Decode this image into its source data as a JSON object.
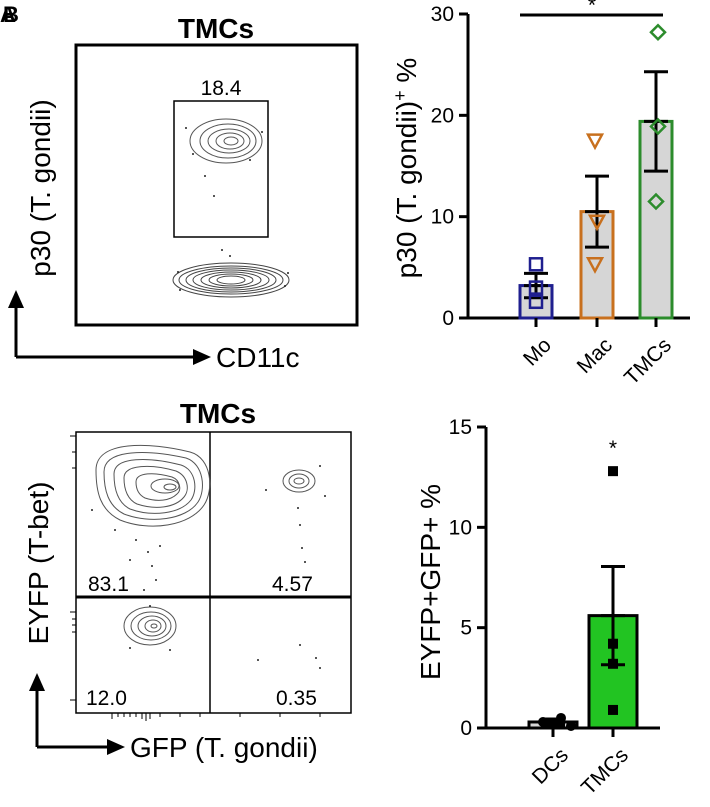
{
  "panels": {
    "letters": [
      "A",
      "B"
    ]
  },
  "flow_top": {
    "title": "TMCs",
    "y_label": "p30 (T. gondii)",
    "x_label": "CD11c",
    "gate_value": "18.4"
  },
  "flow_bottom": {
    "title": "TMCs",
    "y_label": "EYFP (T-bet)",
    "x_label": "GFP (T. gondii)",
    "quadrants": {
      "upper_left": "83.1",
      "upper_right": "4.57",
      "lower_left": "12.0",
      "lower_right": "0.35"
    }
  },
  "colors": {
    "mo": "#1f1f8f",
    "mac": "#c8701e",
    "tmc": "#2c8c2c",
    "tmc_fill": "#22c422",
    "bar_fill": "#d6d6d6"
  },
  "chart_data": [
    {
      "type": "bar",
      "title": "",
      "ylabel": "p30 (T. gondii)+ %",
      "categories": [
        "Mo",
        "Mac",
        "TMCs"
      ],
      "values": [
        3.2,
        10.5,
        19.4
      ],
      "sem": [
        1.2,
        3.5,
        4.9
      ],
      "points": [
        [
          5.3,
          3.0,
          1.6
        ],
        [
          17.5,
          9.5,
          5.3
        ],
        [
          28.2,
          18.9,
          11.5
        ]
      ],
      "ylim": [
        0,
        30
      ],
      "yticks": [
        0,
        10,
        20,
        30
      ],
      "significance": {
        "from": "Mo",
        "to": "TMCs",
        "label": "*"
      }
    },
    {
      "type": "bar",
      "title": "",
      "ylabel": "EYFP+GFP+ %",
      "categories": [
        "DCs",
        "TMCs"
      ],
      "values": [
        0.3,
        5.6
      ],
      "sem": [
        0.15,
        2.45
      ],
      "points": [
        [
          0.5,
          0.3,
          0.25,
          0.1
        ],
        [
          12.8,
          4.2,
          3.2,
          0.9
        ]
      ],
      "ylim": [
        0,
        15
      ],
      "yticks": [
        0,
        5,
        10,
        15
      ],
      "significance": {
        "on": "TMCs",
        "label": "*"
      }
    }
  ]
}
